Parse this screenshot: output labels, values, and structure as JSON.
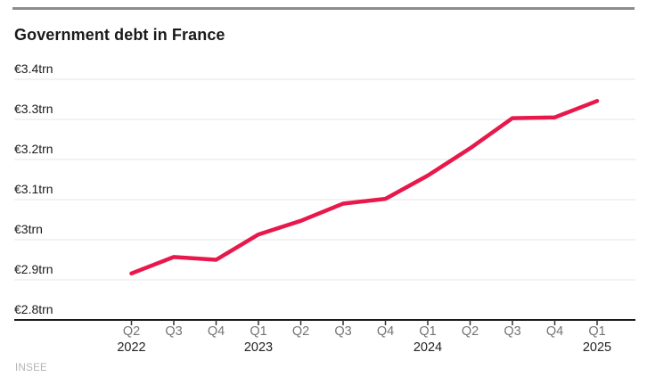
{
  "header": {
    "title": "Government debt in France"
  },
  "footer": {
    "source": "INSEE"
  },
  "colors": {
    "line": "#e8184b",
    "grid": "#e4e4e4",
    "axis": "#1a1a1a",
    "tick": "#333333",
    "quarter_label": "#757575",
    "year_label": "#222222",
    "y_label": "#1a1a1a",
    "top_rule": "#8c8c8c",
    "source": "#b3b3b3",
    "background": "#ffffff"
  },
  "chart_data": {
    "type": "line",
    "title": "Government debt in France",
    "unit": "EUR trillion",
    "categories": [
      "Q2 2022",
      "Q3 2022",
      "Q4 2022",
      "Q1 2023",
      "Q2 2023",
      "Q3 2023",
      "Q4 2023",
      "Q1 2024",
      "Q2 2024",
      "Q3 2024",
      "Q4 2024",
      "Q1 2025"
    ],
    "values": [
      2.916,
      2.957,
      2.95,
      3.013,
      3.047,
      3.09,
      3.102,
      3.16,
      3.228,
      3.303,
      3.305,
      3.346
    ],
    "x_tick_labels": [
      "Q2",
      "Q3",
      "Q4",
      "Q1",
      "Q2",
      "Q3",
      "Q4",
      "Q1",
      "Q2",
      "Q3",
      "Q4",
      "Q1"
    ],
    "year_labels": [
      {
        "index": 0,
        "label": "2022"
      },
      {
        "index": 3,
        "label": "2023"
      },
      {
        "index": 7,
        "label": "2024"
      },
      {
        "index": 11,
        "label": "2025"
      }
    ],
    "y_ticks": [
      {
        "label": "€3.4trn",
        "value": 3.4
      },
      {
        "label": "€3.3trn",
        "value": 3.3
      },
      {
        "label": "€3.2trn",
        "value": 3.2
      },
      {
        "label": "€3.1trn",
        "value": 3.1
      },
      {
        "label": "€3trn",
        "value": 3.0
      },
      {
        "label": "€2.9trn",
        "value": 2.9
      },
      {
        "label": "€2.8trn",
        "value": 2.8
      }
    ],
    "ylim": [
      2.8,
      3.4
    ],
    "xlabel": "",
    "ylabel": "",
    "grid": "horizontal",
    "legend": "none",
    "source": "INSEE"
  }
}
